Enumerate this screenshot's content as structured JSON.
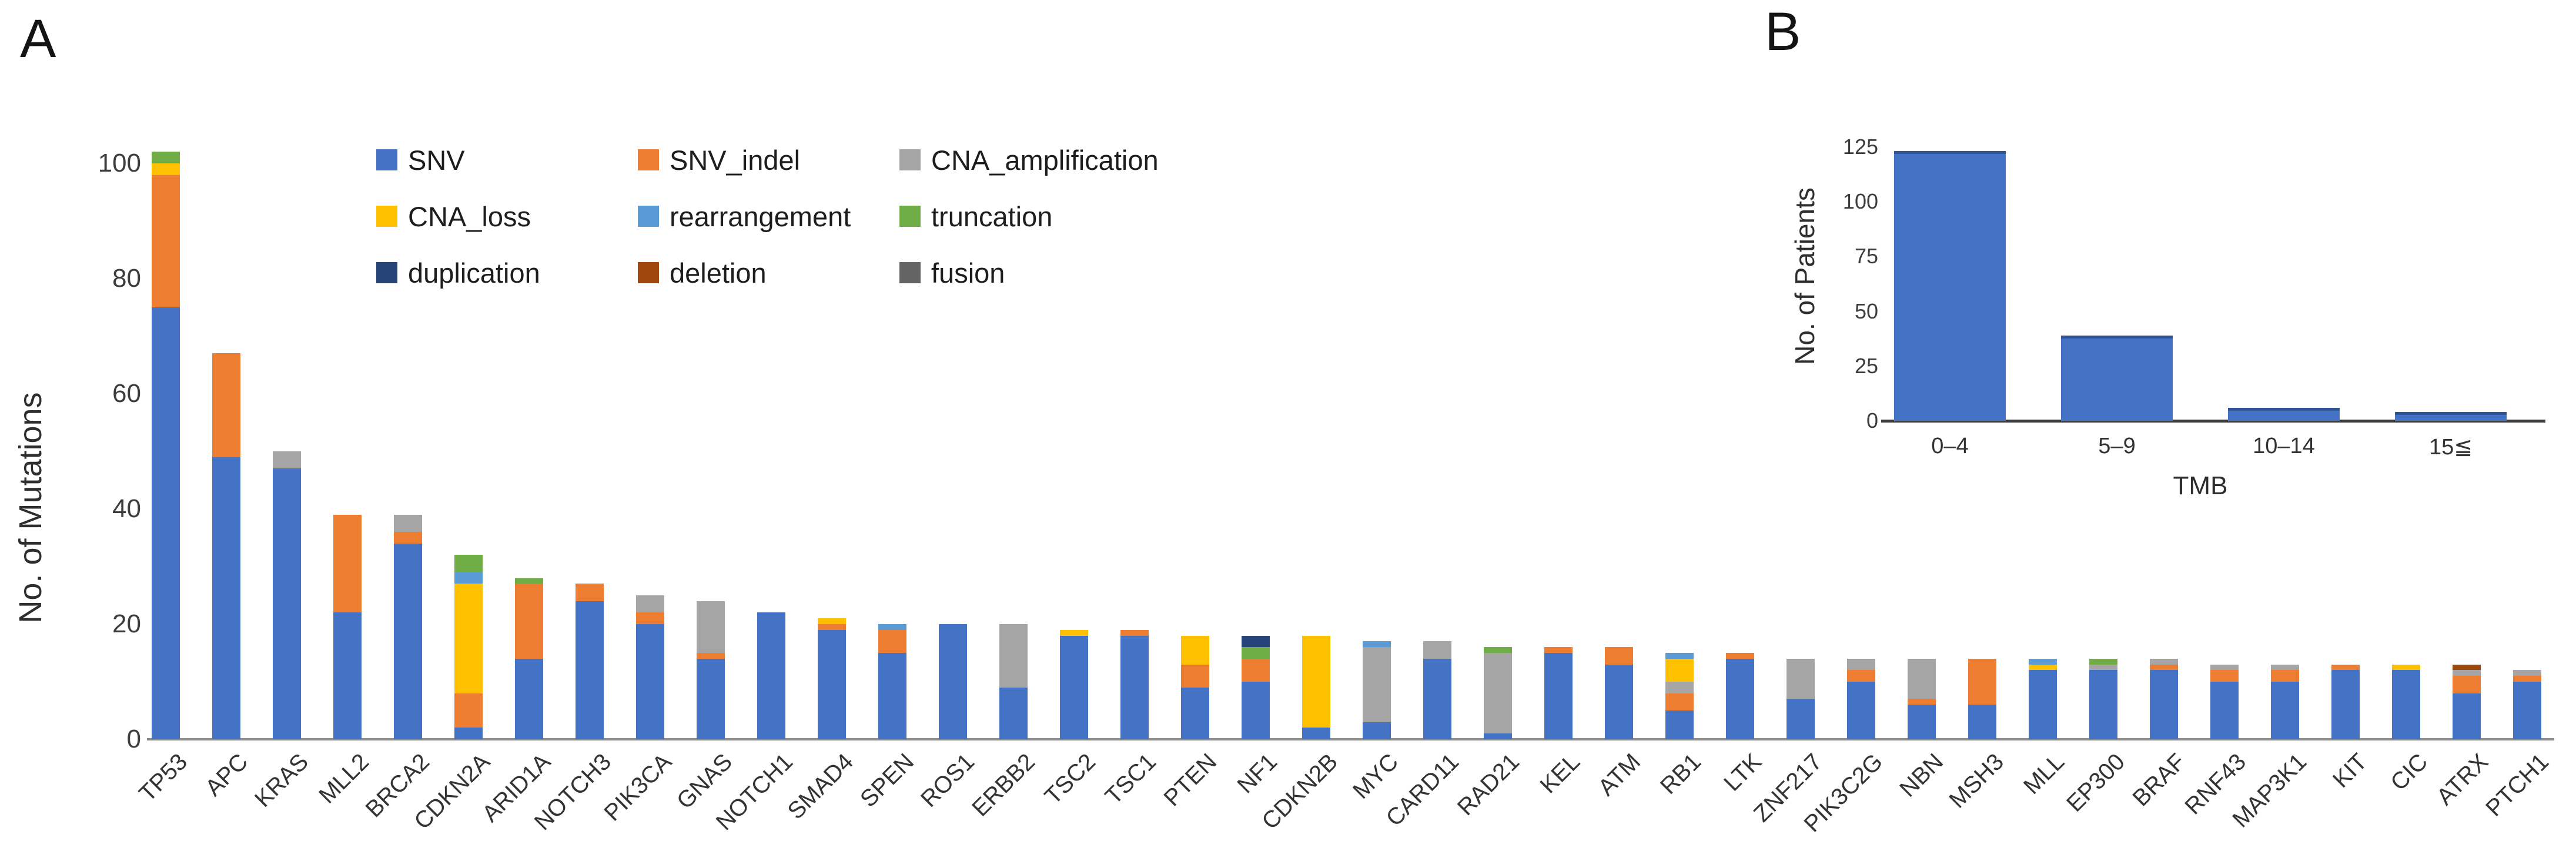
{
  "panels": {
    "a": {
      "label": "A"
    },
    "b": {
      "label": "B"
    }
  },
  "legend": [
    {
      "label": "SNV",
      "color": "#4472C4"
    },
    {
      "label": "SNV_indel",
      "color": "#ED7D31"
    },
    {
      "label": "CNA_amplification",
      "color": "#A5A5A5"
    },
    {
      "label": "CNA_loss",
      "color": "#FFC000"
    },
    {
      "label": "rearrangement",
      "color": "#5B9BD5"
    },
    {
      "label": "truncation",
      "color": "#70AD47"
    },
    {
      "label": "duplication",
      "color": "#264478"
    },
    {
      "label": "deletion",
      "color": "#9E480E"
    },
    {
      "label": "fusion",
      "color": "#636363"
    }
  ],
  "chart_data": [
    {
      "id": "A",
      "type": "bar",
      "subtype": "stacked",
      "title": "",
      "xlabel": "",
      "ylabel": "No. of Mutations",
      "ylim": [
        0,
        102
      ],
      "yticks": [
        0,
        20,
        40,
        60,
        80,
        100
      ],
      "grid": false,
      "legend_position": "top-left-inside",
      "categories": [
        "TP53",
        "APC",
        "KRAS",
        "MLL2",
        "BRCA2",
        "CDKN2A",
        "ARID1A",
        "NOTCH3",
        "PIK3CA",
        "GNAS",
        "NOTCH1",
        "SMAD4",
        "SPEN",
        "ROS1",
        "ERBB2",
        "TSC2",
        "TSC1",
        "PTEN",
        "NF1",
        "CDKN2B",
        "MYC",
        "CARD11",
        "RAD21",
        "KEL",
        "ATM",
        "RB1",
        "LTK",
        "ZNF217",
        "PIK3C2G",
        "NBN",
        "MSH3",
        "MLL",
        "EP300",
        "BRAF",
        "RNF43",
        "MAP3K1",
        "KIT",
        "CIC",
        "ATRX",
        "PTCH1"
      ],
      "series": [
        {
          "name": "SNV",
          "color": "#4472C4",
          "values": [
            75,
            49,
            47,
            22,
            34,
            2,
            14,
            24,
            20,
            14,
            22,
            19,
            15,
            20,
            9,
            18,
            18,
            9,
            10,
            2,
            3,
            14,
            1,
            15,
            13,
            5,
            14,
            7,
            10,
            6,
            6,
            12,
            12,
            12,
            10,
            10,
            12,
            12,
            8,
            10
          ]
        },
        {
          "name": "SNV_indel",
          "color": "#ED7D31",
          "values": [
            23,
            18,
            0,
            17,
            2,
            6,
            13,
            3,
            2,
            1,
            0,
            1,
            4,
            0,
            0,
            0,
            1,
            4,
            4,
            0,
            0,
            0,
            0,
            1,
            3,
            3,
            1,
            0,
            2,
            1,
            8,
            0,
            0,
            1,
            2,
            2,
            1,
            0,
            3,
            1
          ]
        },
        {
          "name": "CNA_amplification",
          "color": "#A5A5A5",
          "values": [
            0,
            0,
            3,
            0,
            3,
            0,
            0,
            0,
            3,
            9,
            0,
            0,
            0,
            0,
            11,
            0,
            0,
            0,
            0,
            0,
            13,
            3,
            14,
            0,
            0,
            2,
            0,
            7,
            2,
            7,
            0,
            0,
            1,
            1,
            1,
            1,
            0,
            0,
            1,
            1
          ]
        },
        {
          "name": "CNA_loss",
          "color": "#FFC000",
          "values": [
            2,
            0,
            0,
            0,
            0,
            19,
            0,
            0,
            0,
            0,
            0,
            1,
            0,
            0,
            0,
            1,
            0,
            5,
            0,
            16,
            0,
            0,
            0,
            0,
            0,
            4,
            0,
            0,
            0,
            0,
            0,
            1,
            0,
            0,
            0,
            0,
            0,
            1,
            0,
            0
          ]
        },
        {
          "name": "rearrangement",
          "color": "#5B9BD5",
          "values": [
            0,
            0,
            0,
            0,
            0,
            2,
            0,
            0,
            0,
            0,
            0,
            0,
            1,
            0,
            0,
            0,
            0,
            0,
            0,
            0,
            1,
            0,
            0,
            0,
            0,
            1,
            0,
            0,
            0,
            0,
            0,
            1,
            0,
            0,
            0,
            0,
            0,
            0,
            0,
            0
          ]
        },
        {
          "name": "truncation",
          "color": "#70AD47",
          "values": [
            2,
            0,
            0,
            0,
            0,
            3,
            1,
            0,
            0,
            0,
            0,
            0,
            0,
            0,
            0,
            0,
            0,
            0,
            2,
            0,
            0,
            0,
            1,
            0,
            0,
            0,
            0,
            0,
            0,
            0,
            0,
            0,
            1,
            0,
            0,
            0,
            0,
            0,
            0,
            0
          ]
        },
        {
          "name": "duplication",
          "color": "#264478",
          "values": [
            0,
            0,
            0,
            0,
            0,
            0,
            0,
            0,
            0,
            0,
            0,
            0,
            0,
            0,
            0,
            0,
            0,
            0,
            2,
            0,
            0,
            0,
            0,
            0,
            0,
            0,
            0,
            0,
            0,
            0,
            0,
            0,
            0,
            0,
            0,
            0,
            0,
            0,
            0,
            0
          ]
        },
        {
          "name": "deletion",
          "color": "#9E480E",
          "values": [
            0,
            0,
            0,
            0,
            0,
            0,
            0,
            0,
            0,
            0,
            0,
            0,
            0,
            0,
            0,
            0,
            0,
            0,
            0,
            0,
            0,
            0,
            0,
            0,
            0,
            0,
            0,
            0,
            0,
            0,
            0,
            0,
            0,
            0,
            0,
            0,
            0,
            0,
            1,
            0
          ]
        },
        {
          "name": "fusion",
          "color": "#636363",
          "values": [
            0,
            0,
            0,
            0,
            0,
            0,
            0,
            0,
            0,
            0,
            0,
            0,
            0,
            0,
            0,
            0,
            0,
            0,
            0,
            0,
            0,
            0,
            0,
            0,
            0,
            0,
            0,
            0,
            0,
            0,
            0,
            0,
            0,
            0,
            0,
            0,
            0,
            0,
            0,
            0
          ]
        }
      ]
    },
    {
      "id": "B",
      "type": "bar",
      "title": "",
      "xlabel": "TMB",
      "ylabel": "No. of Patients",
      "ylim": [
        0,
        125
      ],
      "yticks": [
        0,
        25,
        50,
        75,
        100,
        125
      ],
      "grid": false,
      "categories": [
        "0–4",
        "5–9",
        "10–14",
        "15≦"
      ],
      "values": [
        123,
        39,
        6,
        4
      ],
      "bar_color": "#4472C4"
    }
  ]
}
